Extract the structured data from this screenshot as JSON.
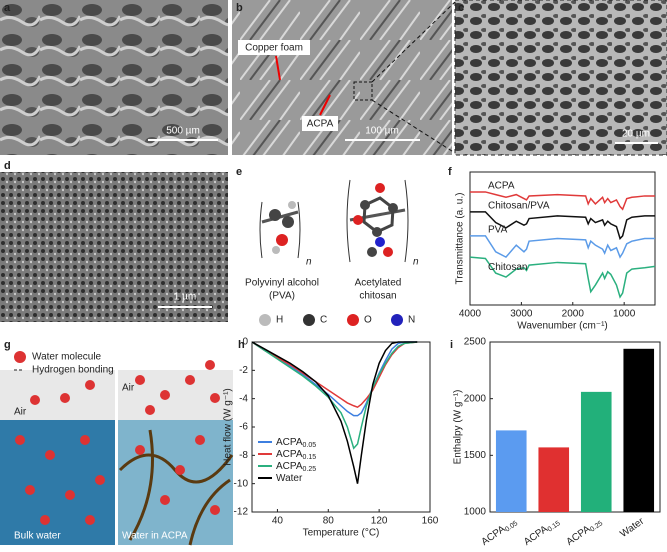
{
  "panels": {
    "labels": [
      "a",
      "b",
      "c",
      "d",
      "e",
      "f",
      "g",
      "h",
      "i"
    ],
    "a": {
      "scale": "500 µm"
    },
    "b": {
      "copper": "Copper foam",
      "acpa": "ACPA",
      "scale": "100 µm"
    },
    "c": {
      "scale": "20 µm"
    },
    "d": {
      "scale": "1 µm"
    },
    "e": {
      "n1": "n",
      "n2": "n",
      "pva": [
        "Polyvinyl alcohol",
        "(PVA)"
      ],
      "chitosan": [
        "Acetylated",
        "chitosan"
      ],
      "atoms": [
        "H",
        "C",
        "O",
        "N"
      ]
    },
    "g": {
      "legend": [
        "Water molecule",
        "Hydrogen bonding"
      ],
      "air_left": "Air",
      "air_right": "Air",
      "bulk": "Bulk water",
      "acpa": "Water in ACPA"
    }
  },
  "chart_data": [
    {
      "type": "line",
      "xlabel": "Wavenumber (cm⁻¹)",
      "ylabel": "Transmittance (a. u.)",
      "xlim": [
        4000,
        400
      ],
      "ylim": [
        0,
        10
      ],
      "xticks": [
        4000,
        3000,
        2000,
        1000
      ],
      "x": [
        4000,
        3700,
        3500,
        3300,
        3100,
        2950,
        2900,
        2850,
        2300,
        1750,
        1700,
        1650,
        1560,
        1420,
        1380,
        1320,
        1260,
        1150,
        1080,
        1030,
        950,
        850,
        600,
        400
      ],
      "series": [
        {
          "name": "ACPA",
          "color": "#e03a3a",
          "values": [
            8.5,
            8.5,
            8.3,
            8.1,
            8.3,
            8.0,
            7.9,
            8.2,
            8.3,
            8.2,
            7.6,
            8.0,
            7.6,
            8.1,
            7.7,
            8.0,
            7.7,
            7.9,
            7.4,
            7.2,
            8.0,
            8.1,
            8.2,
            8.2
          ]
        },
        {
          "name": "Chitosan/PVA",
          "color": "#111111",
          "values": [
            7.0,
            7.0,
            6.2,
            5.8,
            6.3,
            6.0,
            6.1,
            6.5,
            6.7,
            6.6,
            6.1,
            6.5,
            6.2,
            6.4,
            6.0,
            6.3,
            6.1,
            5.9,
            5.0,
            5.2,
            6.4,
            6.6,
            6.7,
            6.7
          ]
        },
        {
          "name": "PVA",
          "color": "#5b9be8",
          "values": [
            5.2,
            5.2,
            4.0,
            3.6,
            4.5,
            4.0,
            4.2,
            4.8,
            5.0,
            4.9,
            4.3,
            4.8,
            4.5,
            4.2,
            3.9,
            4.5,
            4.1,
            4.3,
            3.6,
            3.9,
            4.6,
            4.8,
            5.0,
            5.0
          ]
        },
        {
          "name": "Chitosan",
          "color": "#2bb07f",
          "values": [
            3.6,
            3.5,
            2.4,
            2.1,
            2.7,
            2.8,
            2.6,
            3.0,
            3.2,
            3.1,
            2.0,
            1.0,
            1.5,
            2.4,
            2.0,
            2.5,
            2.3,
            1.5,
            0.6,
            0.9,
            2.4,
            2.7,
            2.8,
            2.9
          ]
        }
      ]
    },
    {
      "type": "line",
      "xlabel": "Temperature (°C)",
      "ylabel": "Heat flow (W g⁻¹)",
      "xlim": [
        20,
        160
      ],
      "ylim": [
        -12,
        0
      ],
      "xticks": [
        40,
        80,
        120,
        160
      ],
      "yticks": [
        0,
        -2,
        -4,
        -6,
        -8,
        -10,
        -12
      ],
      "x": [
        20,
        30,
        40,
        50,
        60,
        70,
        80,
        90,
        95,
        100,
        103,
        106,
        110,
        115,
        120,
        125,
        130,
        135,
        140,
        150
      ],
      "series": [
        {
          "name": "ACPA",
          "subscript": "0.05",
          "color": "#3d7fe0",
          "values": [
            0,
            -0.6,
            -1.1,
            -1.7,
            -2.3,
            -3,
            -3.7,
            -4.5,
            -4.9,
            -5.2,
            -5.2,
            -5.0,
            -4.3,
            -3.2,
            -2.2,
            -1.3,
            -0.5,
            -0.1,
            0,
            0
          ]
        },
        {
          "name": "ACPA",
          "subscript": "0.15",
          "color": "#e03a3a",
          "values": [
            0,
            -0.6,
            -1.1,
            -1.6,
            -2.2,
            -2.8,
            -3.4,
            -4,
            -4.3,
            -4.5,
            -4.6,
            -4.4,
            -4.0,
            -3.4,
            -2.5,
            -1.6,
            -0.9,
            -0.4,
            -0.1,
            0
          ]
        },
        {
          "name": "ACPA",
          "subscript": "0.25",
          "color": "#2bb07f",
          "values": [
            0,
            -0.6,
            -1.2,
            -1.8,
            -2.4,
            -3.1,
            -3.9,
            -5.0,
            -6,
            -7.5,
            -7.2,
            -6,
            -4.5,
            -3.2,
            -2.3,
            -1.5,
            -0.8,
            -0.3,
            -0.1,
            0
          ]
        },
        {
          "name": "Water",
          "color": "#000000",
          "values": [
            0,
            -0.5,
            -1,
            -1.5,
            -2.1,
            -2.8,
            -3.8,
            -5.6,
            -7,
            -8.8,
            -10,
            -8,
            -5.5,
            -3,
            -1.5,
            -0.6,
            -0.1,
            0,
            0,
            0
          ]
        }
      ]
    },
    {
      "type": "bar",
      "ylabel": "Enthalpy (W g⁻¹)",
      "ylim": [
        1000,
        2500
      ],
      "yticks": [
        1000,
        1500,
        2000,
        2500
      ],
      "categories": [
        "ACPA",
        "ACPA",
        "ACPA",
        "Water"
      ],
      "subscripts": [
        "0.05",
        "0.15",
        "0.25",
        null
      ],
      "values": [
        1720,
        1570,
        2060,
        2440
      ],
      "colors": [
        "#5b9bf0",
        "#e03030",
        "#22b07a",
        "#000000"
      ]
    }
  ]
}
